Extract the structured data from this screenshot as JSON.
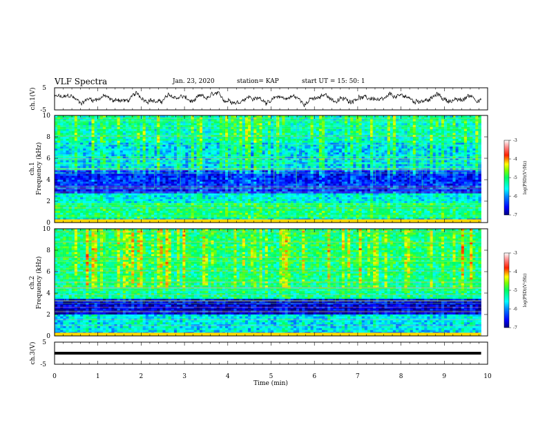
{
  "header": {
    "title": "VLF Spectra",
    "date": "Jan. 23, 2020",
    "station": "station= KAP",
    "start": "start  UT =   15: 50: 1"
  },
  "chart_data": [
    {
      "type": "line",
      "name": "ch1-waveform",
      "ylabel": "ch.1(V)",
      "yticks": [
        "5",
        "-5"
      ],
      "ylim": [
        -5,
        5
      ],
      "xlim": [
        0,
        10
      ],
      "shown_extent_min": [
        0,
        9.85
      ]
    },
    {
      "type": "heatmap",
      "name": "ch1-spectrogram",
      "ylabel_line1": "ch.1",
      "ylabel_line2": "Frequency (kHz)",
      "yticks": [
        "0",
        "2",
        "4",
        "6",
        "8",
        "10"
      ],
      "ylim_khz": [
        0,
        10
      ],
      "xlim_min": [
        0,
        10
      ],
      "colorbar": {
        "label": "log(PSD)(V²/Hz)",
        "range": [
          -7,
          -3
        ],
        "ticks": [
          "-3",
          "-4",
          "-5",
          "-6",
          "-7"
        ]
      },
      "approx_bands_khz": [
        {
          "f": [
            0.3,
            1.8
          ],
          "level": -5.2
        },
        {
          "f": [
            1.8,
            2.8
          ],
          "level": -5.6
        },
        {
          "f": [
            2.8,
            5.0
          ],
          "level": -6.5
        },
        {
          "f": [
            5.0,
            7.5
          ],
          "level": -5.8
        },
        {
          "f": [
            7.5,
            10
          ],
          "level": -5.5
        }
      ]
    },
    {
      "type": "heatmap",
      "name": "ch2-spectrogram",
      "ylabel_line1": "ch.2",
      "ylabel_line2": "Frequency (kHz)",
      "yticks": [
        "0",
        "2",
        "4",
        "6",
        "8",
        "10"
      ],
      "ylim_khz": [
        0,
        10
      ],
      "xlim_min": [
        0,
        10
      ],
      "colorbar": {
        "label": "log(PSD)(V²/Hz)",
        "range": [
          -7,
          -3
        ],
        "ticks": [
          "-3",
          "-4",
          "-5",
          "-6",
          "-7"
        ]
      },
      "approx_bands_khz": [
        {
          "f": [
            0.3,
            2.0
          ],
          "level": -5.7
        },
        {
          "f": [
            2.0,
            3.5
          ],
          "level": -6.8
        },
        {
          "f": [
            3.5,
            6.5
          ],
          "level": -5.3
        },
        {
          "f": [
            6.5,
            10
          ],
          "level": -5.2
        }
      ]
    },
    {
      "type": "line",
      "name": "ch3-waveform",
      "ylabel": "ch.3(V)",
      "yticks": [
        "5",
        "-5"
      ],
      "ylim": [
        -5,
        5
      ],
      "constant_value": 0,
      "xlabel": "Time (min)",
      "xticks": [
        "0",
        "1",
        "2",
        "3",
        "4",
        "5",
        "6",
        "7",
        "8",
        "9",
        "10"
      ],
      "xlim": [
        0,
        10
      ],
      "shown_extent_min": [
        0,
        9.85
      ]
    }
  ],
  "colors": {
    "colormap": [
      "#000080",
      "#0000ff",
      "#00aaff",
      "#00ffff",
      "#00ff80",
      "#80ff00",
      "#ffff00",
      "#ff8000",
      "#ff0000",
      "#ff8080",
      "#ffffff"
    ],
    "line": "#000000",
    "frame": "#000000"
  }
}
